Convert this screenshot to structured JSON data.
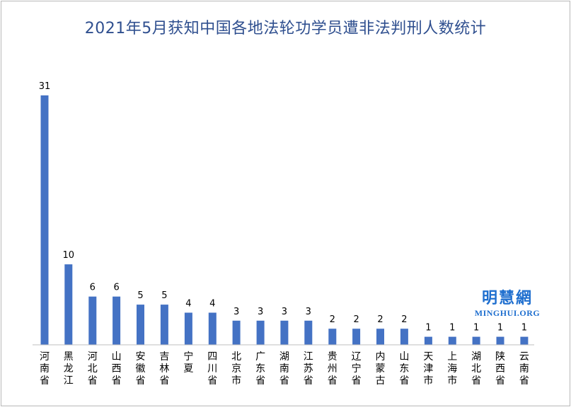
{
  "chart_data": {
    "type": "bar",
    "title": "2021年5月获知中国各地法轮功学员遭非法判刑人数统计",
    "categories": [
      "河南省",
      "黑龙江",
      "河北省",
      "山西省",
      "安徽省",
      "吉林省",
      "宁夏",
      "四川省",
      "北京市",
      "广东省",
      "湖南省",
      "江苏省",
      "贵州省",
      "辽宁省",
      "内蒙古",
      "山东省",
      "天津市",
      "上海市",
      "湖北省",
      "陕西省",
      "云南省"
    ],
    "values": [
      31,
      10,
      6,
      6,
      5,
      5,
      4,
      4,
      3,
      3,
      3,
      3,
      2,
      2,
      2,
      2,
      1,
      1,
      1,
      1,
      1
    ],
    "ylim": [
      0,
      31
    ],
    "grid": false,
    "legend": "none",
    "bar_color": "#4472c4",
    "axis_color": "#bfbfbf"
  },
  "watermark": {
    "cn": "明慧網",
    "en": "MINGHUI.ORG"
  }
}
